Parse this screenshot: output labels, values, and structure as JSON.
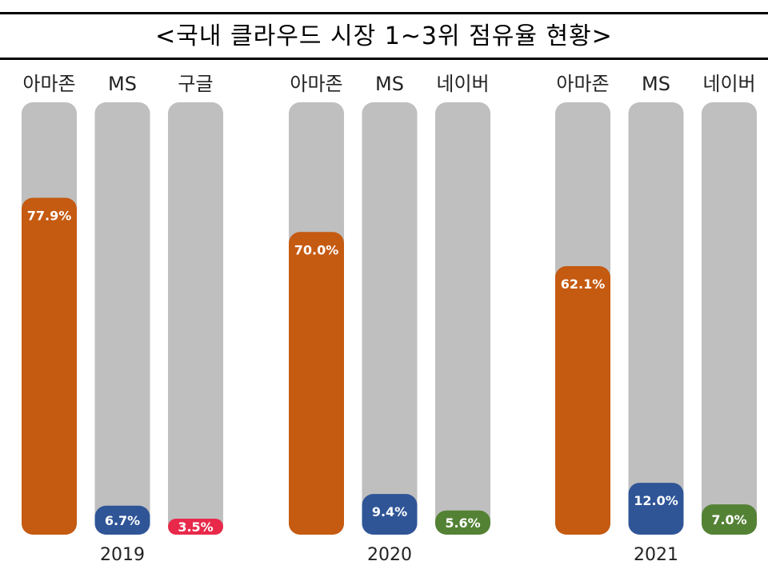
{
  "title": "<국내 클라우드 시장 1~3위 점유율 현황>",
  "chart_data": {
    "type": "bar",
    "value_unit": "%",
    "ylim": [
      0,
      100
    ],
    "grid": false,
    "legend": "none",
    "groups": [
      {
        "year": "2019",
        "bars": [
          {
            "category": "아마존",
            "value": 77.9,
            "label": "77.9%",
            "color": "#c55a11"
          },
          {
            "category": "MS",
            "value": 6.7,
            "label": "6.7%",
            "color": "#2f5597"
          },
          {
            "category": "구글",
            "value": 3.5,
            "label": "3.5%",
            "color": "#e8294a"
          }
        ]
      },
      {
        "year": "2020",
        "bars": [
          {
            "category": "아마존",
            "value": 70.0,
            "label": "70.0%",
            "color": "#c55a11"
          },
          {
            "category": "MS",
            "value": 9.4,
            "label": "9.4%",
            "color": "#2f5597"
          },
          {
            "category": "네이버",
            "value": 5.6,
            "label": "5.6%",
            "color": "#548235"
          }
        ]
      },
      {
        "year": "2021",
        "bars": [
          {
            "category": "아마존",
            "value": 62.1,
            "label": "62.1%",
            "color": "#c55a11"
          },
          {
            "category": "MS",
            "value": 12.0,
            "label": "12.0%",
            "color": "#2f5597"
          },
          {
            "category": "네이버",
            "value": 7.0,
            "label": "7.0%",
            "color": "#548235"
          }
        ]
      }
    ],
    "track_color": "#bfbfbf"
  }
}
